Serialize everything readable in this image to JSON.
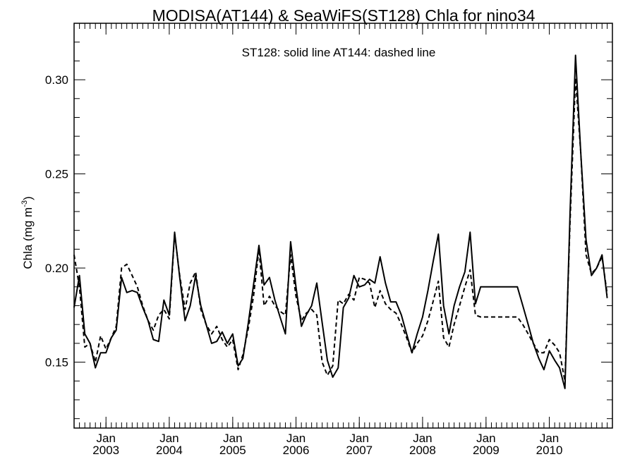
{
  "chart_data": {
    "type": "line",
    "title": "MODISA(AT144) & SeaWiFS(ST128)  Chla for nino34",
    "annotation": "ST128: solid line   AT144: dashed line",
    "ylabel_main": "Chla (mg m",
    "ylabel_exp": "-3",
    "ylabel_close": ")",
    "xlim": [
      "2002-07-01",
      "2010-12-31"
    ],
    "ylim": [
      0.115,
      0.33
    ],
    "grid": false,
    "yticks": [
      {
        "value": 0.15,
        "label": "0.15"
      },
      {
        "value": 0.2,
        "label": "0.20"
      },
      {
        "value": 0.25,
        "label": "0.25"
      },
      {
        "value": 0.3,
        "label": "0.30"
      }
    ],
    "xticks": [
      {
        "date": "2003-01-01",
        "label_month": "Jan",
        "label_year": "2003"
      },
      {
        "date": "2004-01-01",
        "label_month": "Jan",
        "label_year": "2004"
      },
      {
        "date": "2005-01-01",
        "label_month": "Jan",
        "label_year": "2005"
      },
      {
        "date": "2006-01-01",
        "label_month": "Jan",
        "label_year": "2006"
      },
      {
        "date": "2007-01-01",
        "label_month": "Jan",
        "label_year": "2007"
      },
      {
        "date": "2008-01-01",
        "label_month": "Jan",
        "label_year": "2008"
      },
      {
        "date": "2009-01-01",
        "label_month": "Jan",
        "label_year": "2009"
      },
      {
        "date": "2010-01-01",
        "label_month": "Jan",
        "label_year": "2010"
      }
    ],
    "series": [
      {
        "name": "ST128",
        "style": "solid",
        "color": "#000000",
        "points": [
          [
            "2002-07-01",
            0.179
          ],
          [
            "2002-08-01",
            0.196
          ],
          [
            "2002-09-01",
            0.165
          ],
          [
            "2002-10-01",
            0.16
          ],
          [
            "2002-11-01",
            0.147
          ],
          [
            "2002-12-01",
            0.155
          ],
          [
            "2003-01-01",
            0.155
          ],
          [
            "2003-02-01",
            0.163
          ],
          [
            "2003-03-01",
            0.167
          ],
          [
            "2003-04-01",
            0.195
          ],
          [
            "2003-05-01",
            0.187
          ],
          [
            "2003-06-01",
            0.188
          ],
          [
            "2003-07-01",
            0.187
          ],
          [
            "2003-08-01",
            0.179
          ],
          [
            "2003-09-01",
            0.172
          ],
          [
            "2003-10-01",
            0.162
          ],
          [
            "2003-11-01",
            0.161
          ],
          [
            "2003-12-01",
            0.183
          ],
          [
            "2004-01-01",
            0.175
          ],
          [
            "2004-02-01",
            0.219
          ],
          [
            "2004-03-01",
            0.195
          ],
          [
            "2004-04-01",
            0.172
          ],
          [
            "2004-05-01",
            0.18
          ],
          [
            "2004-06-01",
            0.196
          ],
          [
            "2004-07-01",
            0.18
          ],
          [
            "2004-08-01",
            0.17
          ],
          [
            "2004-09-01",
            0.16
          ],
          [
            "2004-10-01",
            0.161
          ],
          [
            "2004-11-01",
            0.166
          ],
          [
            "2004-12-01",
            0.16
          ],
          [
            "2005-01-01",
            0.165
          ],
          [
            "2005-02-01",
            0.148
          ],
          [
            "2005-03-01",
            0.152
          ],
          [
            "2005-04-01",
            0.171
          ],
          [
            "2005-05-01",
            0.191
          ],
          [
            "2005-06-01",
            0.212
          ],
          [
            "2005-07-01",
            0.191
          ],
          [
            "2005-08-01",
            0.195
          ],
          [
            "2005-09-01",
            0.183
          ],
          [
            "2005-10-01",
            0.174
          ],
          [
            "2005-11-01",
            0.165
          ],
          [
            "2005-12-01",
            0.214
          ],
          [
            "2006-01-01",
            0.19
          ],
          [
            "2006-02-01",
            0.169
          ],
          [
            "2006-03-01",
            0.175
          ],
          [
            "2006-04-01",
            0.18
          ],
          [
            "2006-05-01",
            0.192
          ],
          [
            "2006-06-01",
            0.171
          ],
          [
            "2006-07-01",
            0.151
          ],
          [
            "2006-08-01",
            0.142
          ],
          [
            "2006-09-01",
            0.147
          ],
          [
            "2006-10-01",
            0.179
          ],
          [
            "2006-11-01",
            0.184
          ],
          [
            "2006-12-01",
            0.196
          ],
          [
            "2007-01-01",
            0.19
          ],
          [
            "2007-02-01",
            0.191
          ],
          [
            "2007-03-01",
            0.194
          ],
          [
            "2007-04-01",
            0.192
          ],
          [
            "2007-05-01",
            0.206
          ],
          [
            "2007-06-01",
            0.192
          ],
          [
            "2007-07-01",
            0.182
          ],
          [
            "2007-08-01",
            0.182
          ],
          [
            "2007-09-01",
            0.175
          ],
          [
            "2007-10-01",
            0.165
          ],
          [
            "2007-11-01",
            0.155
          ],
          [
            "2007-12-01",
            0.165
          ],
          [
            "2008-01-01",
            0.174
          ],
          [
            "2008-02-01",
            0.188
          ],
          [
            "2008-03-01",
            0.203
          ],
          [
            "2008-04-01",
            0.218
          ],
          [
            "2008-05-01",
            0.18
          ],
          [
            "2008-06-01",
            0.165
          ],
          [
            "2008-07-01",
            0.18
          ],
          [
            "2008-08-01",
            0.19
          ],
          [
            "2008-09-01",
            0.198
          ],
          [
            "2008-10-01",
            0.219
          ],
          [
            "2008-11-01",
            0.181
          ],
          [
            "2008-12-01",
            0.19
          ],
          [
            "2009-07-01",
            0.19
          ],
          [
            "2009-08-01",
            0.18
          ],
          [
            "2009-09-01",
            0.17
          ],
          [
            "2009-10-01",
            0.16
          ],
          [
            "2009-11-01",
            0.152
          ],
          [
            "2009-12-01",
            0.146
          ],
          [
            "2010-01-01",
            0.156
          ],
          [
            "2010-02-01",
            0.151
          ],
          [
            "2010-03-01",
            0.147
          ],
          [
            "2010-04-01",
            0.136
          ],
          [
            "2010-05-01",
            0.23
          ],
          [
            "2010-06-01",
            0.313
          ],
          [
            "2010-07-01",
            0.262
          ],
          [
            "2010-08-01",
            0.215
          ],
          [
            "2010-09-01",
            0.196
          ],
          [
            "2010-10-01",
            0.2
          ],
          [
            "2010-11-01",
            0.207
          ],
          [
            "2010-12-01",
            0.184
          ]
        ]
      },
      {
        "name": "AT144",
        "style": "dashed",
        "color": "#000000",
        "points": [
          [
            "2002-07-01",
            0.207
          ],
          [
            "2002-08-01",
            0.19
          ],
          [
            "2002-09-01",
            0.158
          ],
          [
            "2002-10-01",
            0.16
          ],
          [
            "2002-11-01",
            0.15
          ],
          [
            "2002-12-01",
            0.164
          ],
          [
            "2003-01-01",
            0.157
          ],
          [
            "2003-02-01",
            0.163
          ],
          [
            "2003-03-01",
            0.169
          ],
          [
            "2003-04-01",
            0.2
          ],
          [
            "2003-05-01",
            0.202
          ],
          [
            "2003-06-01",
            0.196
          ],
          [
            "2003-07-01",
            0.19
          ],
          [
            "2003-08-01",
            0.18
          ],
          [
            "2003-09-01",
            0.172
          ],
          [
            "2003-10-01",
            0.167
          ],
          [
            "2003-11-01",
            0.175
          ],
          [
            "2003-12-01",
            0.178
          ],
          [
            "2004-01-01",
            0.173
          ],
          [
            "2004-02-01",
            0.218
          ],
          [
            "2004-03-01",
            0.196
          ],
          [
            "2004-04-01",
            0.178
          ],
          [
            "2004-05-01",
            0.192
          ],
          [
            "2004-06-01",
            0.198
          ],
          [
            "2004-07-01",
            0.178
          ],
          [
            "2004-08-01",
            0.17
          ],
          [
            "2004-09-01",
            0.165
          ],
          [
            "2004-10-01",
            0.169
          ],
          [
            "2004-11-01",
            0.162
          ],
          [
            "2004-12-01",
            0.158
          ],
          [
            "2005-01-01",
            0.162
          ],
          [
            "2005-02-01",
            0.146
          ],
          [
            "2005-03-01",
            0.154
          ],
          [
            "2005-04-01",
            0.168
          ],
          [
            "2005-05-01",
            0.185
          ],
          [
            "2005-06-01",
            0.21
          ],
          [
            "2005-07-01",
            0.18
          ],
          [
            "2005-08-01",
            0.185
          ],
          [
            "2005-09-01",
            0.18
          ],
          [
            "2005-10-01",
            0.177
          ],
          [
            "2005-11-01",
            0.175
          ],
          [
            "2005-12-01",
            0.207
          ],
          [
            "2006-01-01",
            0.185
          ],
          [
            "2006-02-01",
            0.172
          ],
          [
            "2006-03-01",
            0.176
          ],
          [
            "2006-04-01",
            0.178
          ],
          [
            "2006-05-01",
            0.175
          ],
          [
            "2006-06-01",
            0.15
          ],
          [
            "2006-07-01",
            0.143
          ],
          [
            "2006-08-01",
            0.148
          ],
          [
            "2006-09-01",
            0.183
          ],
          [
            "2006-10-01",
            0.181
          ],
          [
            "2006-11-01",
            0.186
          ],
          [
            "2006-12-01",
            0.183
          ],
          [
            "2007-01-01",
            0.195
          ],
          [
            "2007-02-01",
            0.194
          ],
          [
            "2007-03-01",
            0.192
          ],
          [
            "2007-04-01",
            0.179
          ],
          [
            "2007-05-01",
            0.188
          ],
          [
            "2007-06-01",
            0.181
          ],
          [
            "2007-07-01",
            0.178
          ],
          [
            "2007-08-01",
            0.176
          ],
          [
            "2007-09-01",
            0.17
          ],
          [
            "2007-10-01",
            0.163
          ],
          [
            "2007-11-01",
            0.155
          ],
          [
            "2007-12-01",
            0.16
          ],
          [
            "2008-01-01",
            0.164
          ],
          [
            "2008-02-01",
            0.172
          ],
          [
            "2008-03-01",
            0.182
          ],
          [
            "2008-04-01",
            0.193
          ],
          [
            "2008-05-01",
            0.163
          ],
          [
            "2008-06-01",
            0.158
          ],
          [
            "2008-07-01",
            0.17
          ],
          [
            "2008-08-01",
            0.18
          ],
          [
            "2008-09-01",
            0.19
          ],
          [
            "2008-10-01",
            0.199
          ],
          [
            "2008-11-01",
            0.175
          ],
          [
            "2008-12-01",
            0.174
          ],
          [
            "2009-07-01",
            0.174
          ],
          [
            "2009-08-01",
            0.17
          ],
          [
            "2009-09-01",
            0.165
          ],
          [
            "2009-10-01",
            0.16
          ],
          [
            "2009-11-01",
            0.155
          ],
          [
            "2009-12-01",
            0.155
          ],
          [
            "2010-01-01",
            0.162
          ],
          [
            "2010-02-01",
            0.159
          ],
          [
            "2010-03-01",
            0.155
          ],
          [
            "2010-04-01",
            0.14
          ],
          [
            "2010-05-01",
            0.225
          ],
          [
            "2010-06-01",
            0.301
          ],
          [
            "2010-07-01",
            0.262
          ],
          [
            "2010-08-01",
            0.207
          ],
          [
            "2010-09-01",
            0.197
          ],
          [
            "2010-10-01",
            0.2
          ],
          [
            "2010-11-01",
            0.206
          ],
          [
            "2010-12-01",
            0.186
          ]
        ]
      }
    ]
  }
}
